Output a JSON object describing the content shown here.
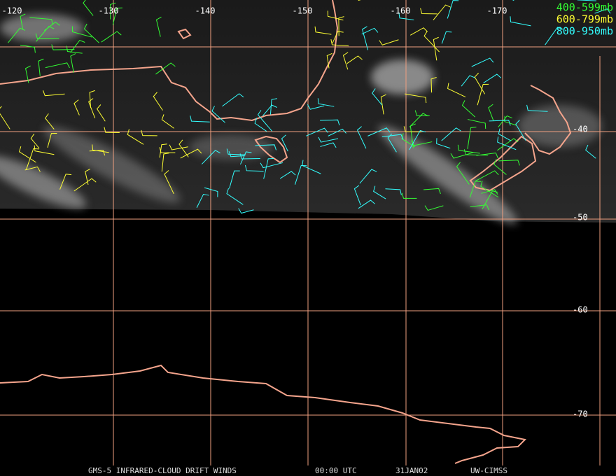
{
  "map": {
    "longitude_labels": [
      "-120",
      "-130",
      "-140",
      "-150",
      "-160",
      "-170"
    ],
    "latitude_labels": [
      "-40",
      "-50",
      "-60",
      "-70"
    ],
    "legend": [
      "400-599mb",
      "600-799mb",
      "800-950mb"
    ],
    "footer": [
      "GMS-5 INFRARED-CLOUD DRIFT WINDS",
      "00:00 UTC",
      "31JAN02",
      "UW-CIMSS"
    ]
  }
}
